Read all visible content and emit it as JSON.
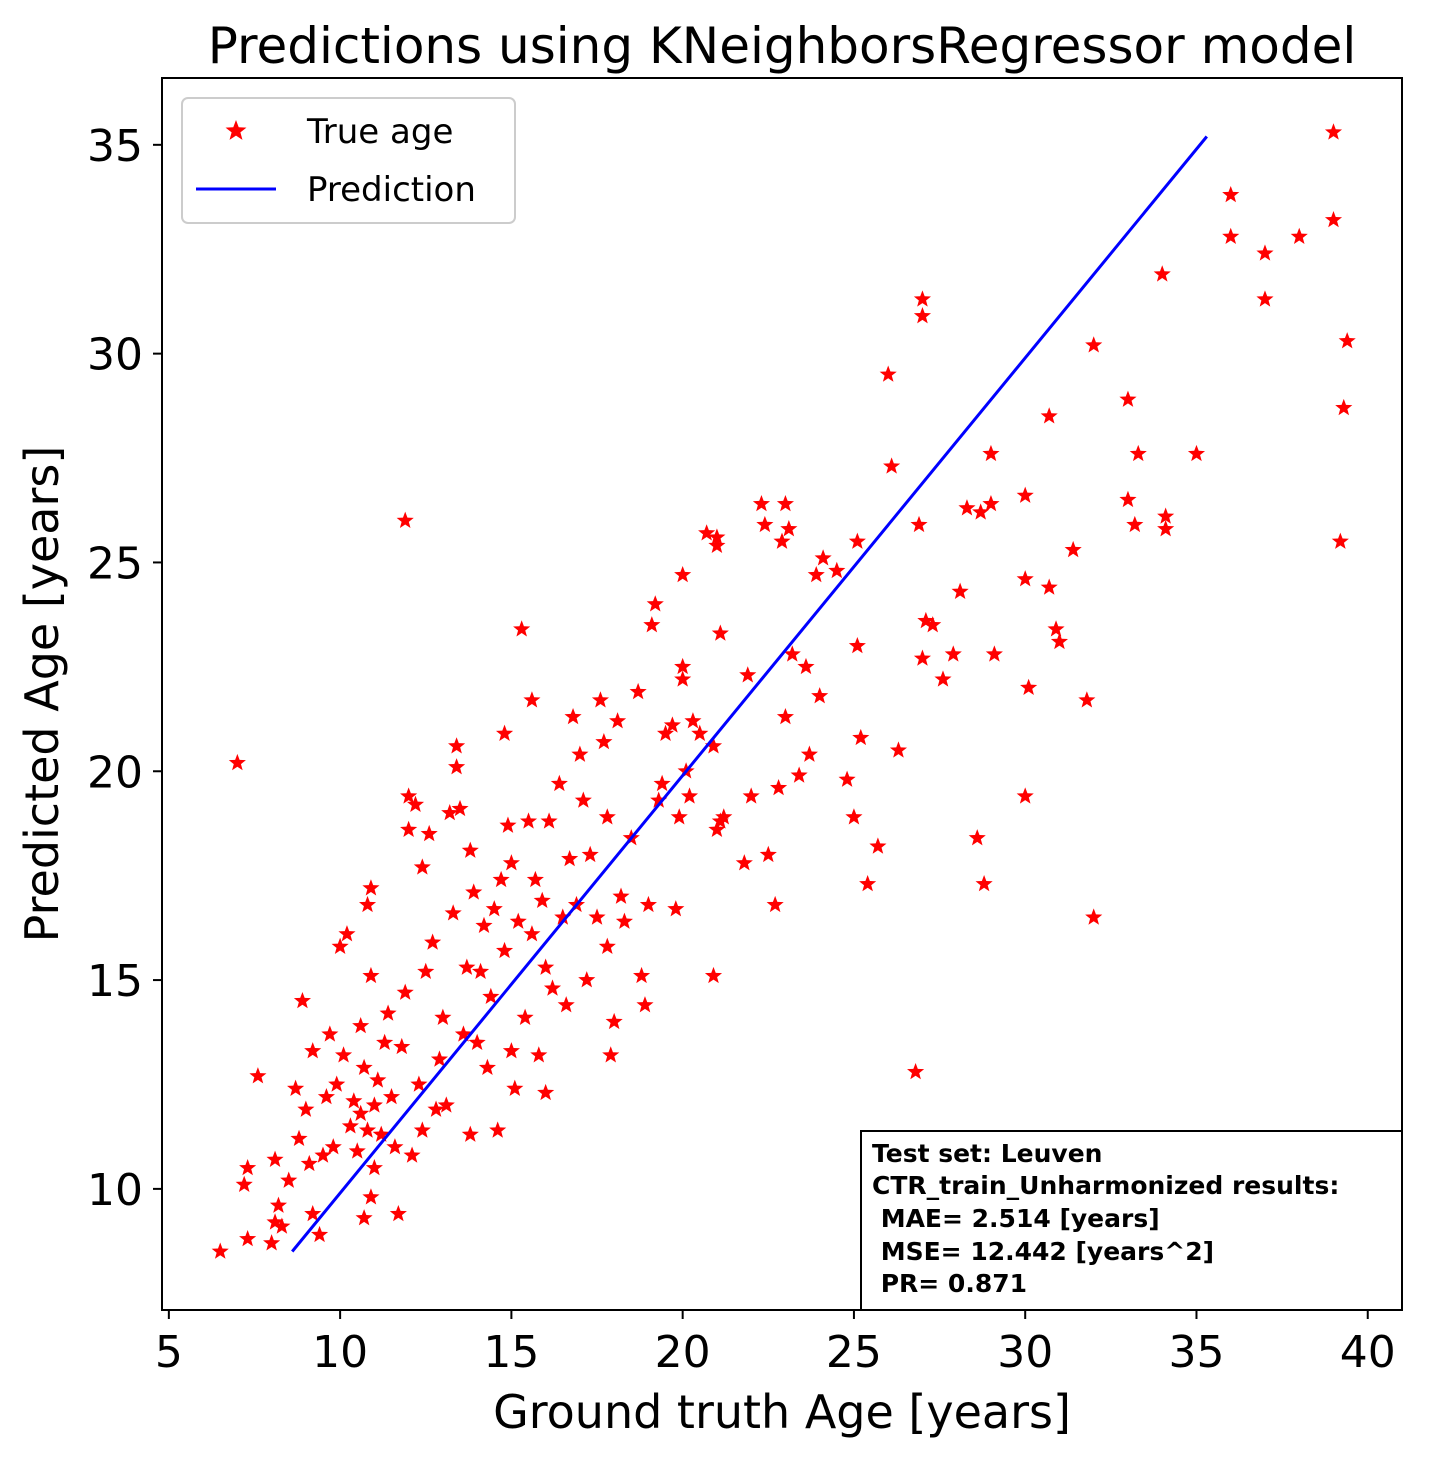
{
  "chart_data": {
    "type": "scatter",
    "title": "Predictions using KNeighborsRegressor model",
    "xlabel": "Ground truth Age [years]",
    "ylabel": "Predicted Age [years]",
    "xlim": [
      4.8,
      41.0
    ],
    "ylim": [
      7.1,
      36.6
    ],
    "xticks": [
      5,
      10,
      15,
      20,
      25,
      30,
      35,
      40
    ],
    "yticks": [
      10,
      15,
      20,
      25,
      30,
      35
    ],
    "grid": false,
    "legend": {
      "placement": "top-left",
      "entries": [
        "True age",
        "Prediction"
      ]
    },
    "colors": {
      "points": "#ff0000",
      "line": "#0000ff",
      "frame": "#000000"
    },
    "series": [
      {
        "name": "True age",
        "marker": "star",
        "color": "#ff0000",
        "points": [
          [
            6.5,
            8.5
          ],
          [
            7.0,
            20.2
          ],
          [
            7.2,
            10.1
          ],
          [
            7.3,
            10.5
          ],
          [
            7.3,
            8.8
          ],
          [
            7.6,
            12.7
          ],
          [
            8.0,
            8.7
          ],
          [
            8.1,
            9.2
          ],
          [
            8.1,
            10.7
          ],
          [
            8.2,
            9.6
          ],
          [
            8.3,
            9.1
          ],
          [
            8.5,
            10.2
          ],
          [
            8.7,
            12.4
          ],
          [
            8.8,
            11.2
          ],
          [
            8.9,
            14.5
          ],
          [
            9.0,
            11.9
          ],
          [
            9.1,
            10.6
          ],
          [
            9.2,
            9.4
          ],
          [
            9.2,
            13.3
          ],
          [
            9.4,
            8.9
          ],
          [
            9.5,
            10.8
          ],
          [
            9.6,
            12.2
          ],
          [
            9.7,
            13.7
          ],
          [
            9.8,
            11.0
          ],
          [
            9.9,
            12.5
          ],
          [
            10.0,
            15.8
          ],
          [
            10.1,
            13.2
          ],
          [
            10.2,
            16.1
          ],
          [
            10.3,
            11.5
          ],
          [
            10.4,
            12.1
          ],
          [
            10.5,
            10.9
          ],
          [
            10.6,
            13.9
          ],
          [
            10.6,
            11.8
          ],
          [
            10.7,
            12.9
          ],
          [
            10.7,
            9.3
          ],
          [
            10.8,
            16.8
          ],
          [
            10.8,
            11.4
          ],
          [
            10.9,
            17.2
          ],
          [
            10.9,
            15.1
          ],
          [
            10.9,
            9.8
          ],
          [
            11.0,
            12.0
          ],
          [
            11.0,
            10.5
          ],
          [
            11.1,
            12.6
          ],
          [
            11.2,
            11.3
          ],
          [
            11.3,
            13.5
          ],
          [
            11.4,
            14.2
          ],
          [
            11.5,
            12.2
          ],
          [
            11.6,
            11.0
          ],
          [
            11.7,
            9.4
          ],
          [
            11.8,
            13.4
          ],
          [
            11.9,
            14.7
          ],
          [
            11.9,
            26.0
          ],
          [
            12.0,
            19.4
          ],
          [
            12.0,
            18.6
          ],
          [
            12.1,
            10.8
          ],
          [
            12.2,
            19.2
          ],
          [
            12.3,
            12.5
          ],
          [
            12.4,
            11.4
          ],
          [
            12.4,
            17.7
          ],
          [
            12.5,
            15.2
          ],
          [
            12.6,
            18.5
          ],
          [
            12.7,
            15.9
          ],
          [
            12.8,
            11.9
          ],
          [
            12.9,
            13.1
          ],
          [
            13.0,
            14.1
          ],
          [
            13.1,
            12.0
          ],
          [
            13.2,
            19.0
          ],
          [
            13.3,
            16.6
          ],
          [
            13.4,
            20.6
          ],
          [
            13.4,
            20.1
          ],
          [
            13.5,
            19.1
          ],
          [
            13.6,
            13.7
          ],
          [
            13.7,
            15.3
          ],
          [
            13.8,
            18.1
          ],
          [
            13.8,
            11.3
          ],
          [
            13.9,
            17.1
          ],
          [
            14.0,
            13.5
          ],
          [
            14.1,
            15.2
          ],
          [
            14.2,
            16.3
          ],
          [
            14.3,
            12.9
          ],
          [
            14.4,
            14.6
          ],
          [
            14.5,
            16.7
          ],
          [
            14.6,
            11.4
          ],
          [
            14.7,
            17.4
          ],
          [
            14.8,
            15.7
          ],
          [
            14.8,
            20.9
          ],
          [
            14.9,
            18.7
          ],
          [
            15.0,
            17.8
          ],
          [
            15.0,
            13.3
          ],
          [
            15.1,
            12.4
          ],
          [
            15.2,
            16.4
          ],
          [
            15.3,
            23.4
          ],
          [
            15.4,
            14.1
          ],
          [
            15.5,
            18.8
          ],
          [
            15.6,
            16.1
          ],
          [
            15.6,
            21.7
          ],
          [
            15.7,
            17.4
          ],
          [
            15.8,
            13.2
          ],
          [
            15.9,
            16.9
          ],
          [
            16.0,
            12.3
          ],
          [
            16.0,
            15.3
          ],
          [
            16.1,
            18.8
          ],
          [
            16.2,
            14.8
          ],
          [
            16.4,
            19.7
          ],
          [
            16.5,
            16.5
          ],
          [
            16.6,
            14.4
          ],
          [
            16.7,
            17.9
          ],
          [
            16.8,
            21.3
          ],
          [
            16.9,
            16.8
          ],
          [
            17.0,
            20.4
          ],
          [
            17.1,
            19.3
          ],
          [
            17.2,
            15.0
          ],
          [
            17.3,
            18.0
          ],
          [
            17.5,
            16.5
          ],
          [
            17.6,
            21.7
          ],
          [
            17.7,
            20.7
          ],
          [
            17.8,
            18.9
          ],
          [
            17.8,
            15.8
          ],
          [
            17.9,
            13.2
          ],
          [
            18.0,
            14.0
          ],
          [
            18.1,
            21.2
          ],
          [
            18.2,
            17.0
          ],
          [
            18.3,
            16.4
          ],
          [
            18.5,
            18.4
          ],
          [
            18.7,
            21.9
          ],
          [
            18.8,
            15.1
          ],
          [
            18.9,
            14.4
          ],
          [
            19.0,
            16.8
          ],
          [
            19.1,
            23.5
          ],
          [
            19.2,
            24.0
          ],
          [
            19.3,
            19.3
          ],
          [
            19.4,
            19.7
          ],
          [
            19.5,
            20.9
          ],
          [
            19.7,
            21.1
          ],
          [
            19.8,
            16.7
          ],
          [
            19.9,
            18.9
          ],
          [
            20.0,
            22.5
          ],
          [
            20.0,
            22.2
          ],
          [
            20.0,
            24.7
          ],
          [
            20.1,
            20.0
          ],
          [
            20.2,
            19.4
          ],
          [
            20.3,
            21.2
          ],
          [
            20.5,
            20.9
          ],
          [
            20.7,
            25.7
          ],
          [
            20.9,
            20.6
          ],
          [
            20.9,
            15.1
          ],
          [
            21.0,
            25.4
          ],
          [
            21.0,
            25.6
          ],
          [
            21.0,
            18.6
          ],
          [
            21.1,
            18.8
          ],
          [
            21.1,
            23.3
          ],
          [
            21.2,
            18.9
          ],
          [
            21.8,
            17.8
          ],
          [
            21.9,
            22.3
          ],
          [
            22.0,
            19.4
          ],
          [
            22.3,
            26.4
          ],
          [
            22.4,
            25.9
          ],
          [
            22.5,
            18.0
          ],
          [
            22.7,
            16.8
          ],
          [
            22.8,
            19.6
          ],
          [
            22.9,
            25.5
          ],
          [
            23.0,
            26.4
          ],
          [
            23.0,
            21.3
          ],
          [
            23.1,
            25.8
          ],
          [
            23.2,
            22.8
          ],
          [
            23.4,
            19.9
          ],
          [
            23.6,
            22.5
          ],
          [
            23.7,
            20.4
          ],
          [
            23.9,
            24.7
          ],
          [
            24.0,
            21.8
          ],
          [
            24.1,
            25.1
          ],
          [
            24.5,
            24.8
          ],
          [
            24.8,
            19.8
          ],
          [
            25.0,
            18.9
          ],
          [
            25.1,
            25.5
          ],
          [
            25.1,
            23.0
          ],
          [
            25.2,
            20.8
          ],
          [
            25.4,
            17.3
          ],
          [
            25.7,
            18.2
          ],
          [
            26.0,
            29.5
          ],
          [
            26.1,
            27.3
          ],
          [
            26.3,
            20.5
          ],
          [
            26.8,
            12.8
          ],
          [
            26.9,
            25.9
          ],
          [
            27.0,
            31.3
          ],
          [
            27.0,
            30.9
          ],
          [
            27.0,
            22.7
          ],
          [
            27.1,
            23.6
          ],
          [
            27.3,
            23.5
          ],
          [
            27.6,
            22.2
          ],
          [
            27.9,
            22.8
          ],
          [
            28.1,
            24.3
          ],
          [
            28.3,
            26.3
          ],
          [
            28.6,
            18.4
          ],
          [
            28.7,
            26.2
          ],
          [
            28.8,
            17.3
          ],
          [
            29.0,
            27.6
          ],
          [
            29.0,
            26.4
          ],
          [
            29.1,
            22.8
          ],
          [
            30.0,
            26.6
          ],
          [
            30.0,
            24.6
          ],
          [
            30.1,
            22.0
          ],
          [
            30.0,
            19.4
          ],
          [
            30.7,
            28.5
          ],
          [
            30.7,
            24.4
          ],
          [
            30.9,
            23.4
          ],
          [
            31.0,
            23.1
          ],
          [
            31.4,
            25.3
          ],
          [
            31.8,
            21.7
          ],
          [
            32.0,
            30.2
          ],
          [
            32.0,
            16.5
          ],
          [
            33.0,
            28.9
          ],
          [
            33.0,
            26.5
          ],
          [
            33.2,
            25.9
          ],
          [
            33.3,
            27.6
          ],
          [
            34.0,
            31.9
          ],
          [
            34.1,
            25.8
          ],
          [
            34.1,
            26.1
          ],
          [
            35.0,
            27.6
          ],
          [
            36.0,
            33.8
          ],
          [
            36.0,
            32.8
          ],
          [
            37.0,
            32.4
          ],
          [
            37.0,
            31.3
          ],
          [
            38.0,
            32.8
          ],
          [
            39.0,
            35.3
          ],
          [
            39.0,
            33.2
          ],
          [
            39.2,
            25.5
          ],
          [
            39.3,
            28.7
          ],
          [
            39.4,
            30.3
          ]
        ]
      },
      {
        "name": "Prediction",
        "marker": "line",
        "color": "#0000ff",
        "points": [
          [
            8.6,
            8.5
          ],
          [
            35.3,
            35.2
          ]
        ]
      }
    ],
    "annotation": [
      "Test set: Leuven",
      "CTR_train_Unharmonized results:",
      " MAE= 2.514 [years]",
      " MSE= 12.442 [years^2]",
      " PR= 0.871"
    ]
  }
}
